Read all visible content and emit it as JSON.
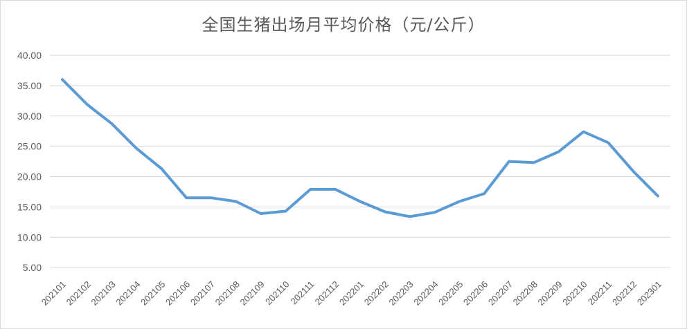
{
  "chart_data": {
    "type": "line",
    "title": "全国生猪出场月平均价格（元/公斤）",
    "categories": [
      "202101",
      "202102",
      "202103",
      "202104",
      "202105",
      "202106",
      "202107",
      "202108",
      "202109",
      "202110",
      "202111",
      "202112",
      "202201",
      "202202",
      "202203",
      "202204",
      "202205",
      "202206",
      "202207",
      "202208",
      "202209",
      "202210",
      "202211",
      "202212",
      "202301"
    ],
    "series": [
      {
        "values": [
          36.0,
          31.9,
          28.7,
          24.6,
          21.3,
          16.5,
          16.5,
          15.9,
          13.9,
          14.3,
          17.9,
          17.9,
          15.9,
          14.2,
          13.4,
          14.1,
          15.9,
          17.2,
          22.5,
          22.3,
          24.1,
          27.4,
          25.6,
          20.9,
          16.8
        ],
        "color": "#5b9bd5"
      }
    ],
    "y_ticks": [
      "5.00",
      "10.00",
      "15.00",
      "20.00",
      "25.00",
      "30.00",
      "35.00",
      "40.00"
    ],
    "ylim": [
      0,
      40
    ],
    "grid": true,
    "legend": "none"
  }
}
